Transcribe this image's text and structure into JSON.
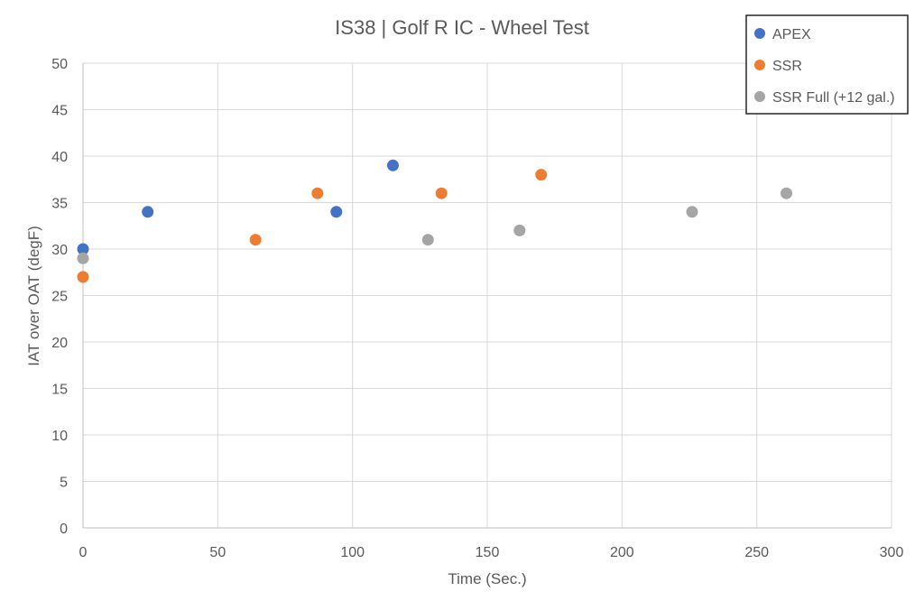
{
  "chart_data": {
    "type": "scatter",
    "title": "IS38 | Golf R IC - Wheel Test",
    "xlabel": "Time (Sec.)",
    "ylabel": "IAT over OAT (degF)",
    "xlim": [
      0,
      300
    ],
    "ylim": [
      0,
      50
    ],
    "x_ticks": [
      0,
      50,
      100,
      150,
      200,
      250,
      300
    ],
    "y_ticks": [
      0,
      5,
      10,
      15,
      20,
      25,
      30,
      35,
      40,
      45,
      50
    ],
    "grid": true,
    "legend_position": "top-right",
    "series": [
      {
        "name": "APEX",
        "color": "#4472C4",
        "points": [
          [
            0,
            30
          ],
          [
            24,
            34
          ],
          [
            94,
            34
          ],
          [
            115,
            39
          ]
        ]
      },
      {
        "name": "SSR",
        "color": "#ED7D31",
        "points": [
          [
            0,
            27
          ],
          [
            64,
            31
          ],
          [
            87,
            36
          ],
          [
            133,
            36
          ],
          [
            170,
            38
          ]
        ]
      },
      {
        "name": "SSR Full (+12 gal.)",
        "color": "#A5A5A5",
        "points": [
          [
            0,
            29
          ],
          [
            128,
            31
          ],
          [
            162,
            32
          ],
          [
            226,
            34
          ],
          [
            261,
            36
          ]
        ]
      }
    ]
  }
}
